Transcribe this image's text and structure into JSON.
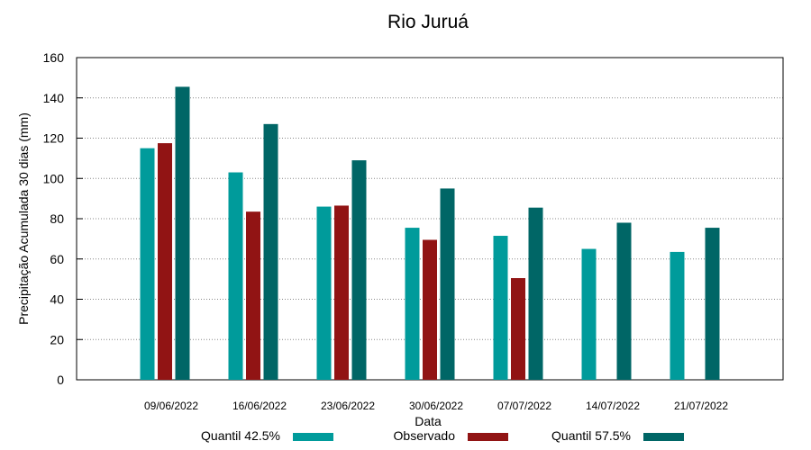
{
  "chart_data": {
    "type": "bar",
    "title": "Rio Juruá",
    "x_label": "Data",
    "y_label": "Precipitação Acumulada 30 dias (mm)",
    "categories": [
      "09/06/2022",
      "16/06/2022",
      "23/06/2022",
      "30/06/2022",
      "07/07/2022",
      "14/07/2022",
      "21/07/2022"
    ],
    "series": [
      {
        "name": "Quantil 42.5%",
        "color": "#009b9b",
        "values": [
          115,
          103,
          86,
          75.5,
          71.5,
          65,
          63.5
        ]
      },
      {
        "name": "Observado",
        "color": "#911414",
        "values": [
          117.5,
          83.5,
          86.5,
          69.5,
          50.5,
          null,
          null
        ]
      },
      {
        "name": "Quantil 57.5%",
        "color": "#006666",
        "values": [
          145.5,
          127,
          109,
          95,
          85.5,
          78,
          75.5
        ]
      }
    ],
    "ylim": [
      0,
      160
    ],
    "yticks": [
      0,
      20,
      40,
      60,
      80,
      100,
      120,
      140,
      160
    ],
    "grid": true,
    "legend": "bottom"
  }
}
